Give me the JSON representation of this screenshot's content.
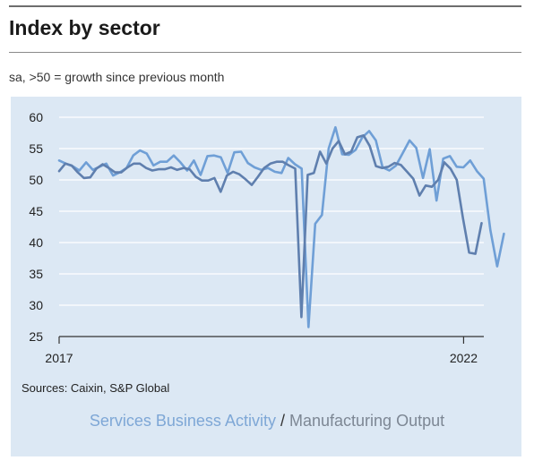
{
  "header": {
    "title": "Index by sector",
    "subtitle": "sa, >50 = growth since previous month"
  },
  "footer": {
    "source": "Sources: Caixin, S&P Global"
  },
  "legend": {
    "series1": "Services Business Activity",
    "separator": "/",
    "series2": "Manufacturing Output"
  },
  "colors": {
    "services": "#6f9fd6",
    "manufacturing": "#5f7fae",
    "grid": "#ffffff",
    "background": "#dce8f4"
  },
  "chart_data": {
    "type": "line",
    "title": "Index by sector",
    "subtitle": "sa, >50 = growth since previous month",
    "ylim": [
      25,
      60
    ],
    "yticks": [
      25,
      30,
      35,
      40,
      45,
      50,
      55,
      60
    ],
    "xlim": [
      2017.0,
      2022.25
    ],
    "xticks": [
      {
        "label": "2017",
        "value": 2017.0
      },
      {
        "label": "2022",
        "value": 2022.0
      }
    ],
    "grid": true,
    "legend_position": "bottom",
    "series": [
      {
        "name": "Services Business Activity",
        "color": "#6f9fd6",
        "values": [
          53.1,
          52.6,
          52.2,
          51.5,
          52.8,
          51.6,
          52.1,
          52.6,
          50.7,
          51.2,
          51.9,
          53.9,
          54.7,
          54.2,
          52.3,
          52.9,
          52.9,
          53.9,
          52.8,
          51.5,
          53.1,
          50.8,
          53.8,
          53.9,
          53.6,
          51.1,
          54.4,
          54.5,
          52.7,
          52.0,
          51.6,
          51.9,
          51.3,
          51.1,
          53.5,
          52.5,
          51.8,
          26.5,
          43.0,
          44.4,
          55.0,
          58.4,
          54.1,
          54.0,
          54.8,
          56.8,
          57.8,
          56.3,
          52.0,
          51.5,
          52.3,
          54.3,
          56.3,
          55.1,
          50.3,
          54.9,
          46.7,
          53.4,
          53.8,
          52.1,
          52.0,
          53.1,
          51.4,
          50.2,
          42.0,
          36.2,
          41.4
        ],
        "start": 2017.0,
        "step": 0.0833
      },
      {
        "name": "Manufacturing Output",
        "color": "#5f7fae",
        "values": [
          51.4,
          52.6,
          52.3,
          51.2,
          50.3,
          50.4,
          51.8,
          52.5,
          51.9,
          51.2,
          51.2,
          52.0,
          52.6,
          52.6,
          51.9,
          51.5,
          51.7,
          51.7,
          52.0,
          51.6,
          51.9,
          51.7,
          50.5,
          49.9,
          49.9,
          50.3,
          48.1,
          50.7,
          51.3,
          50.9,
          50.1,
          49.2,
          50.5,
          51.9,
          52.6,
          52.9,
          52.9,
          52.3,
          51.8,
          28.1,
          50.8,
          51.1,
          54.5,
          52.6,
          55.0,
          56.2,
          54.1,
          54.5,
          56.8,
          57.1,
          55.4,
          52.2,
          51.9,
          52.1,
          52.7,
          52.4,
          51.3,
          50.2,
          47.5,
          49.1,
          48.9,
          50.0,
          52.8,
          51.8,
          50.0,
          43.9,
          38.4,
          38.2,
          43.1
        ],
        "start": 2017.0,
        "step": 0.0768
      }
    ]
  }
}
